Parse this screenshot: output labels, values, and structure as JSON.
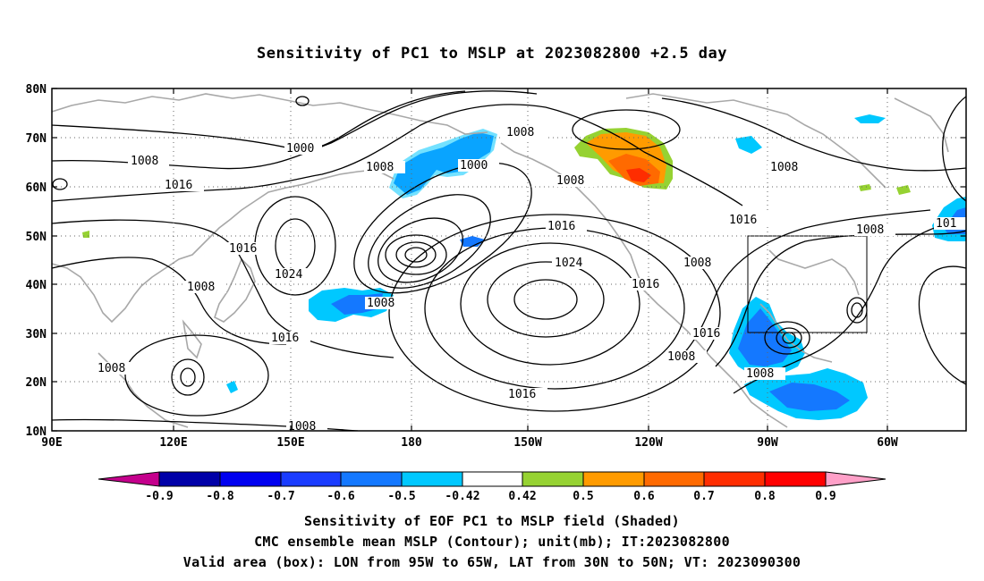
{
  "title": "Sensitivity of PC1 to MSLP at 2023082800 +2.5 day",
  "axes": {
    "lat_labels": [
      "80N",
      "70N",
      "60N",
      "50N",
      "40N",
      "30N",
      "20N",
      "10N"
    ],
    "lon_labels": [
      "90E",
      "120E",
      "150E",
      "180",
      "150W",
      "120W",
      "90W",
      "60W"
    ]
  },
  "contour_labels": {
    "c1": "1000",
    "c2": "1008",
    "c3": "1016",
    "c4": "1008",
    "c5": "1000",
    "c6": "1008",
    "c7": "1008",
    "c8": "1016",
    "c9": "1024",
    "c10": "1008",
    "c11": "1016",
    "c12": "1008",
    "c13": "1016",
    "c14": "1024",
    "c15": "1016",
    "c16": "1016",
    "c17": "1008",
    "c18": "1016",
    "c19": "1008",
    "c20": "1008",
    "c21": "1008",
    "c22": "1008",
    "c23": "1008",
    "c24": "1016",
    "c25": "101",
    "c26": "1008"
  },
  "colorbar": {
    "labels": [
      "-0.9",
      "-0.8",
      "-0.7",
      "-0.6",
      "-0.5",
      "-0.42",
      "0.42",
      "0.5",
      "0.6",
      "0.7",
      "0.8",
      "0.9"
    ],
    "colors": [
      "#c4008c",
      "#0000a8",
      "#0000f0",
      "#1a3cff",
      "#1478ff",
      "#00c8ff",
      "#ffffff",
      "#96d232",
      "#ff9b00",
      "#ff6a00",
      "#ff2d00",
      "#ff0000",
      "#ffa0c8"
    ]
  },
  "box": {
    "lon": "95W to 65W",
    "lat": "30N to 50N"
  },
  "captions": {
    "line1": "Sensitivity of EOF PC1 to MSLP field (Shaded)",
    "line2": "CMC ensemble mean MSLP (Contour); unit(mb); IT:2023082800",
    "line3": "Valid area (box): LON from 95W to 65W, LAT from 30N to 50N; VT: 2023090300"
  }
}
